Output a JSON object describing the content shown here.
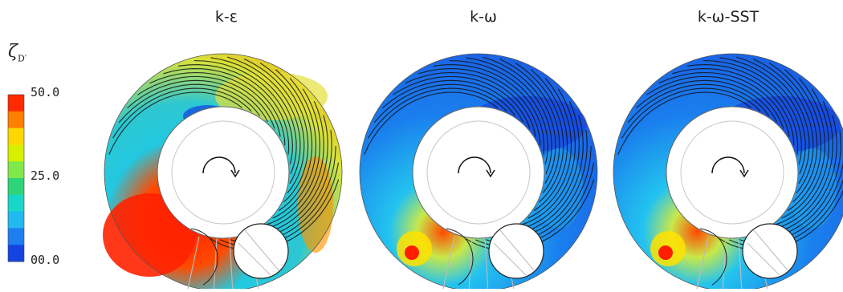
{
  "figure": {
    "panels": [
      {
        "id": "ke",
        "title": "k-ε",
        "variant": "high"
      },
      {
        "id": "kw",
        "title": "k-ω",
        "variant": "low"
      },
      {
        "id": "sst",
        "title": "k-ω-SST",
        "variant": "low"
      }
    ],
    "legend": {
      "symbol": "ζ",
      "subscript": "D′",
      "ticks": [
        "50.0",
        "25.0",
        "00.0"
      ],
      "colors": [
        "#ff2a00",
        "#ff7f00",
        "#ffd700",
        "#d7f000",
        "#7fe84a",
        "#2ed47a",
        "#18d7c8",
        "#22b8f0",
        "#1e7ef0",
        "#1444e0"
      ]
    },
    "rotation_icon": "clockwise-arrow-icon"
  }
}
